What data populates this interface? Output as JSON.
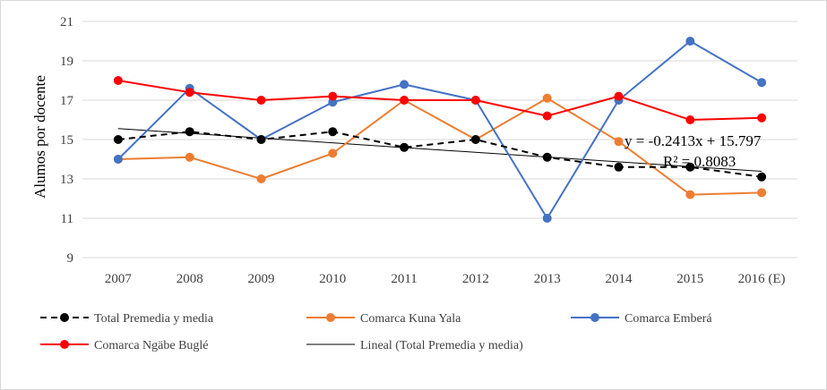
{
  "chart_data": {
    "type": "line",
    "ylabel": "Alumos por docente",
    "xlabel": "",
    "ylim": [
      9,
      21
    ],
    "yticks": [
      9,
      11,
      13,
      15,
      17,
      19,
      21
    ],
    "grid": true,
    "legend_position": "bottom",
    "categories": [
      "2007",
      "2008",
      "2009",
      "2010",
      "2011",
      "2012",
      "2013",
      "2014",
      "2015",
      "2016 (E)"
    ],
    "series": [
      {
        "name": "Total Premedia y media",
        "color": "#000000",
        "dash": "dashed",
        "marker": "circle",
        "values": [
          15.0,
          15.4,
          15.0,
          15.4,
          14.6,
          15.0,
          14.1,
          13.6,
          13.6,
          13.1
        ]
      },
      {
        "name": "Comarca Kuna Yala",
        "color": "#ed7d31",
        "dash": "solid",
        "marker": "circle",
        "values": [
          14.0,
          14.1,
          13.0,
          14.3,
          17.0,
          15.0,
          17.1,
          14.9,
          12.2,
          12.3
        ]
      },
      {
        "name": "Comarca Emberá",
        "color": "#4472c4",
        "dash": "solid",
        "marker": "circle",
        "values": [
          14.0,
          17.6,
          15.0,
          16.9,
          17.8,
          17.0,
          11.0,
          17.0,
          20.0,
          17.9
        ]
      },
      {
        "name": "Comarca Ngäbe Buglé",
        "color": "#ff0000",
        "dash": "solid",
        "marker": "circle",
        "values": [
          18.0,
          17.4,
          17.0,
          17.2,
          17.0,
          17.0,
          16.2,
          17.2,
          16.0,
          16.1
        ]
      }
    ],
    "trendline": {
      "name": "Lineal (Total Premedia y media)",
      "color": "#000000",
      "slope": -0.2413,
      "intercept": 15.797,
      "equation": "y = -0.2413x + 15.797",
      "r2": "R² = 0.8083"
    }
  }
}
